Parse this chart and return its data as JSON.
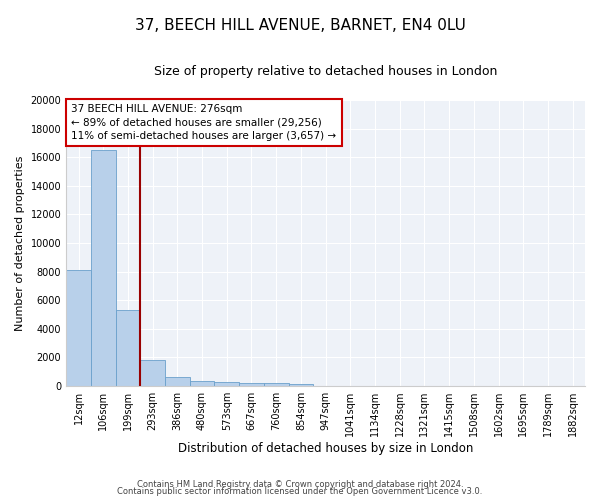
{
  "title1": "37, BEECH HILL AVENUE, BARNET, EN4 0LU",
  "title2": "Size of property relative to detached houses in London",
  "xlabel": "Distribution of detached houses by size in London",
  "ylabel": "Number of detached properties",
  "categories": [
    "12sqm",
    "106sqm",
    "199sqm",
    "293sqm",
    "386sqm",
    "480sqm",
    "573sqm",
    "667sqm",
    "760sqm",
    "854sqm",
    "947sqm",
    "1041sqm",
    "1134sqm",
    "1228sqm",
    "1321sqm",
    "1415sqm",
    "1508sqm",
    "1602sqm",
    "1695sqm",
    "1789sqm",
    "1882sqm"
  ],
  "values": [
    8100,
    16500,
    5300,
    1800,
    650,
    350,
    280,
    230,
    200,
    150,
    0,
    0,
    0,
    0,
    0,
    0,
    0,
    0,
    0,
    0,
    0
  ],
  "bar_color": "#b8d0ea",
  "bar_edge_color": "#6aa0cc",
  "vline_x": 2.5,
  "vline_color": "#990000",
  "annotation_line1": "37 BEECH HILL AVENUE: 276sqm",
  "annotation_line2": "← 89% of detached houses are smaller (29,256)",
  "annotation_line3": "11% of semi-detached houses are larger (3,657) →",
  "annotation_box_color": "#cc0000",
  "ylim": [
    0,
    20000
  ],
  "yticks": [
    0,
    2000,
    4000,
    6000,
    8000,
    10000,
    12000,
    14000,
    16000,
    18000,
    20000
  ],
  "footer1": "Contains HM Land Registry data © Crown copyright and database right 2024.",
  "footer2": "Contains public sector information licensed under the Open Government Licence v3.0.",
  "bg_color": "#eef2f8",
  "grid_color": "#ffffff",
  "title1_fontsize": 11,
  "title2_fontsize": 9,
  "xlabel_fontsize": 8.5,
  "ylabel_fontsize": 8,
  "tick_fontsize": 7,
  "ann_fontsize": 7.5
}
